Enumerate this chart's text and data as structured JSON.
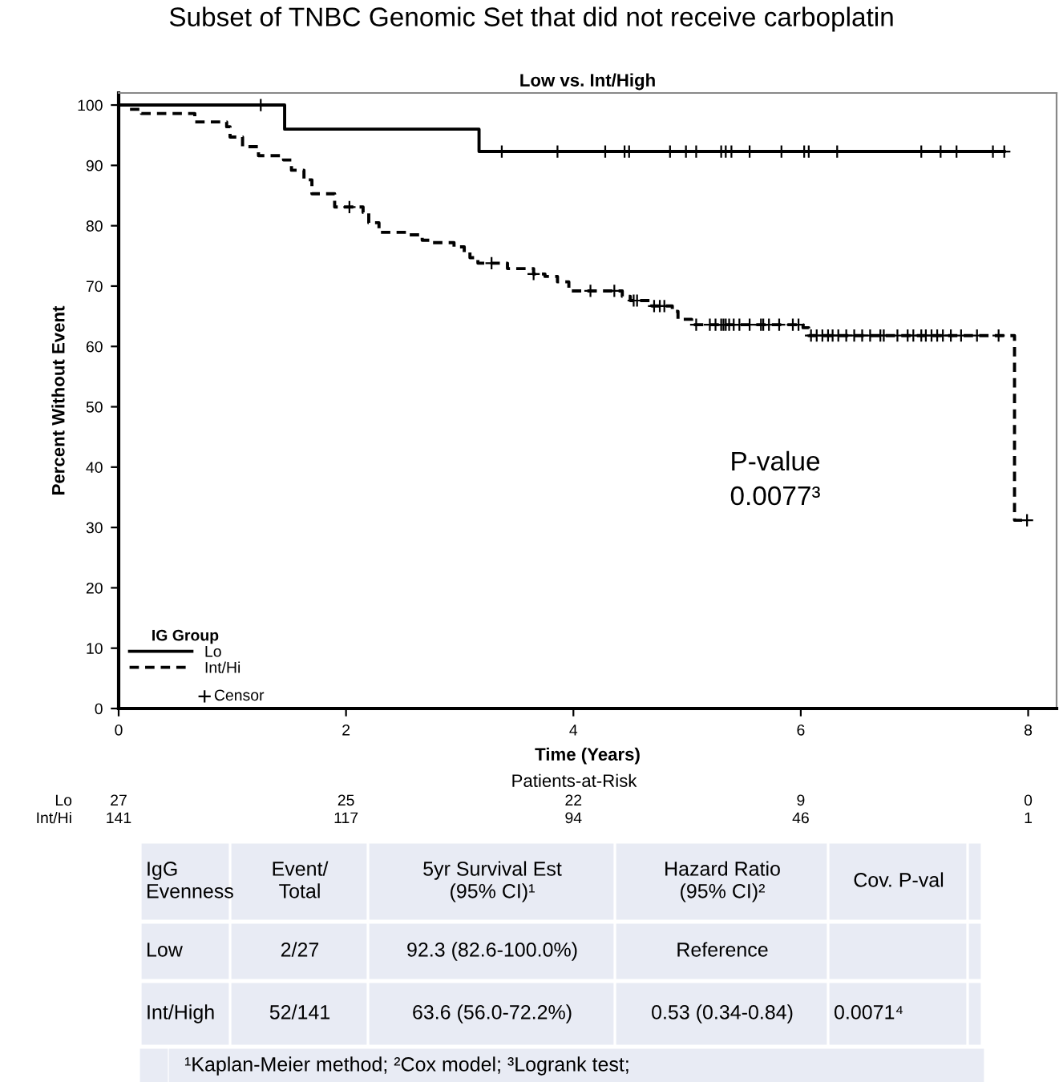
{
  "chart_data": {
    "type": "step",
    "title": "Subset of TNBC Genomic Set that did not receive carboplatin",
    "subtitle": "Low vs. Int/High",
    "xlabel": "Time (Years)",
    "ylabel": "Percent Without Event",
    "legend_title": "IG Group",
    "legend": "bottom left",
    "xlim": [
      0,
      8.25
    ],
    "xticks": [
      0,
      2,
      4,
      6,
      8
    ],
    "ylim": [
      0,
      102
    ],
    "yticks": [
      0,
      10,
      20,
      30,
      40,
      50,
      60,
      70,
      80,
      90,
      100
    ],
    "grid": false,
    "series": [
      {
        "name": "Lo",
        "color": "#000000",
        "line_style": "solid",
        "x": [
          0,
          1.46,
          3.17,
          7.79
        ],
        "values": [
          100,
          96,
          92.3,
          92.3
        ]
      },
      {
        "name": "Int/Hi",
        "color": "#000000",
        "line_style": "dashed",
        "x": [
          0,
          0.08,
          0.2,
          0.67,
          0.95,
          0.98,
          1.09,
          1.23,
          1.45,
          1.52,
          1.63,
          1.7,
          1.9,
          2.15,
          2.2,
          2.29,
          2.53,
          2.67,
          2.76,
          2.95,
          3.04,
          3.09,
          3.16,
          3.42,
          3.65,
          3.75,
          3.86,
          3.96,
          4.43,
          4.5,
          4.69,
          4.87,
          4.92,
          5.04,
          6.02,
          6.07,
          7.88,
          7.99
        ],
        "values": [
          100,
          99.3,
          98.6,
          97.2,
          96.4,
          94.7,
          93.1,
          91.6,
          90.9,
          89.2,
          87.6,
          85.3,
          83.1,
          82.2,
          80.5,
          78.9,
          78.5,
          77.6,
          77.2,
          76.5,
          75.6,
          74.7,
          73.8,
          72.9,
          72.0,
          71.6,
          70.7,
          69.2,
          68.3,
          67.6,
          66.7,
          65.8,
          64.5,
          63.6,
          63.1,
          61.8,
          31.2,
          31.2
        ]
      },
      {
        "name": "Censor",
        "type": "scatter",
        "marker": "cross",
        "color": "#000000",
        "x": [
          1.25,
          3.37,
          3.86,
          4.28,
          4.45,
          4.49,
          4.85,
          4.99,
          5.08,
          5.3,
          5.34,
          5.39,
          5.55,
          5.83,
          6.03,
          6.07,
          6.32,
          7.06,
          7.23,
          7.37,
          7.69,
          7.79,
          2.03,
          3.28,
          3.65,
          4.15,
          4.36,
          4.53,
          4.56,
          4.71,
          4.76,
          4.8,
          5.08,
          5.2,
          5.25,
          5.3,
          5.32,
          5.34,
          5.37,
          5.41,
          5.46,
          5.55,
          5.65,
          5.67,
          5.72,
          5.81,
          5.93,
          5.98,
          6.09,
          6.14,
          6.19,
          6.24,
          6.28,
          6.33,
          6.4,
          6.47,
          6.54,
          6.61,
          6.7,
          6.73,
          6.85,
          6.94,
          6.99,
          7.06,
          7.1,
          7.15,
          7.2,
          7.25,
          7.32,
          7.41,
          7.55,
          7.74,
          7.99
        ],
        "values": [
          100,
          92.3,
          92.3,
          92.3,
          92.3,
          92.3,
          92.3,
          92.3,
          92.3,
          92.3,
          92.3,
          92.3,
          92.3,
          92.3,
          92.3,
          92.3,
          92.3,
          92.3,
          92.3,
          92.3,
          92.3,
          92.3,
          83.1,
          73.8,
          72.0,
          69.2,
          69.2,
          67.6,
          67.6,
          66.7,
          66.7,
          66.7,
          63.6,
          63.6,
          63.6,
          63.6,
          63.6,
          63.6,
          63.6,
          63.6,
          63.6,
          63.6,
          63.6,
          63.6,
          63.6,
          63.6,
          63.6,
          63.6,
          61.8,
          61.8,
          61.8,
          61.8,
          61.8,
          61.8,
          61.8,
          61.8,
          61.8,
          61.8,
          61.8,
          61.8,
          61.8,
          61.8,
          61.8,
          61.8,
          61.8,
          61.8,
          61.8,
          61.8,
          61.8,
          61.8,
          61.8,
          61.8,
          31.2
        ]
      }
    ],
    "annotations": [
      "P-value\n0.0077³",
      "Patients-at-Risk",
      "Lo",
      "27",
      "25",
      "22",
      "9",
      "0",
      "Int/Hi",
      "141",
      "117",
      "94",
      "46",
      "1",
      "IgG\nEvenness",
      "Event/\nTotal",
      "5yr Survival Est\n(95% CI)¹",
      "Hazard Ratio\n(95% CI)²",
      "Cov. P-val",
      "Low",
      "2/27",
      "92.3 (82.6-100.0%)",
      "Reference",
      "Int/High",
      "52/141",
      "63.6 (56.0-72.2%)",
      "0.53 (0.34-0.84)",
      "0.0071⁴",
      "¹Kaplan-Meier method; ²Cox model; ³Logrank test;"
    ]
  }
}
